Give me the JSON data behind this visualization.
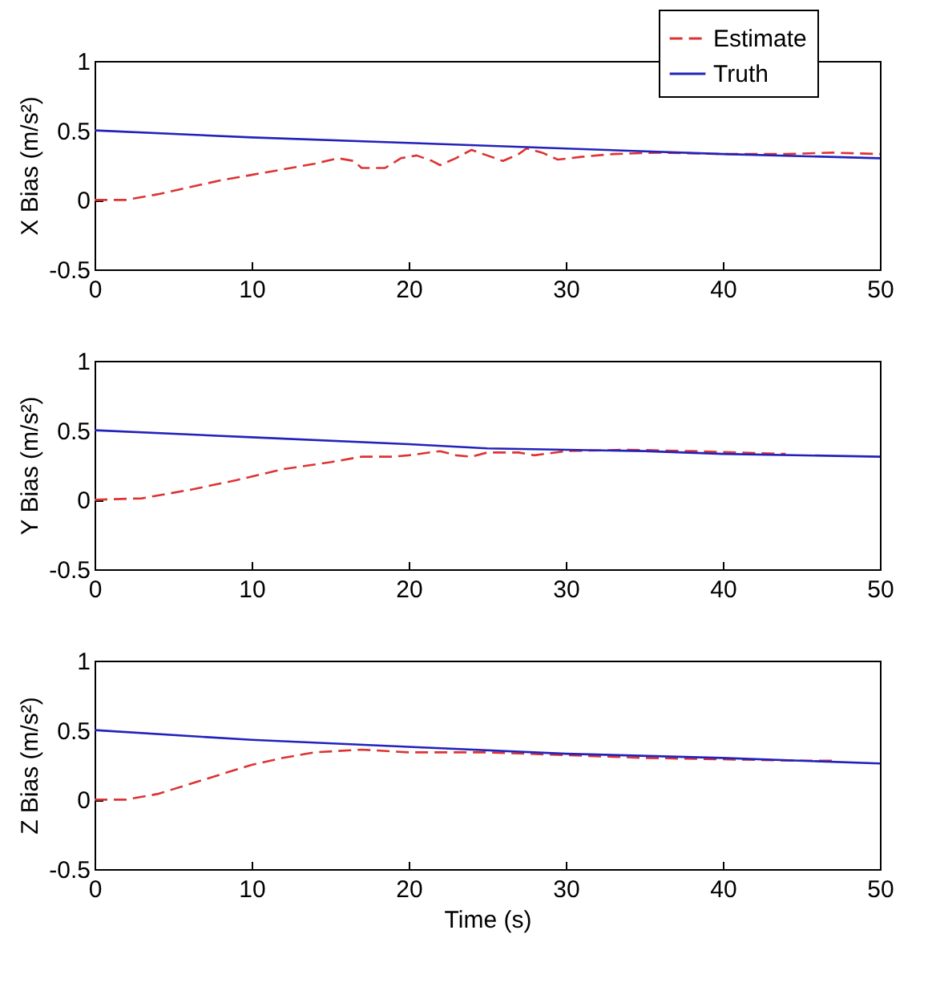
{
  "chart_data": [
    {
      "type": "line",
      "ylabel": "X Bias (m/s²)",
      "xlim": [
        0,
        50
      ],
      "ylim": [
        -0.5,
        1
      ],
      "xticks": [
        0,
        10,
        20,
        30,
        40,
        50
      ],
      "yticks": [
        -0.5,
        0,
        0.5,
        1
      ],
      "grid": false,
      "legend": "top right",
      "series": [
        {
          "name": "Estimate",
          "color": "#dd3333",
          "line_style": "dashed",
          "x": [
            0,
            2,
            4,
            6,
            8,
            10,
            12,
            14,
            15.5,
            16.5,
            17,
            18.5,
            19.5,
            20.5,
            21.5,
            22,
            23,
            24,
            25,
            26,
            27,
            27.5,
            28.5,
            29.5,
            31,
            33,
            36,
            40,
            44,
            47,
            50
          ],
          "values": [
            0,
            0,
            0.04,
            0.09,
            0.14,
            0.18,
            0.22,
            0.26,
            0.3,
            0.28,
            0.23,
            0.23,
            0.3,
            0.32,
            0.28,
            0.25,
            0.3,
            0.36,
            0.32,
            0.28,
            0.33,
            0.37,
            0.34,
            0.29,
            0.31,
            0.33,
            0.34,
            0.33,
            0.33,
            0.34,
            0.33
          ]
        },
        {
          "name": "Truth",
          "color": "#2222bb",
          "line_style": "solid",
          "x": [
            0,
            10,
            20,
            30,
            40,
            50
          ],
          "values": [
            0.5,
            0.45,
            0.41,
            0.37,
            0.33,
            0.3
          ]
        }
      ]
    },
    {
      "type": "line",
      "ylabel": "Y Bias (m/s²)",
      "xlim": [
        0,
        50
      ],
      "ylim": [
        -0.5,
        1
      ],
      "xticks": [
        0,
        10,
        20,
        30,
        40,
        50
      ],
      "yticks": [
        -0.5,
        0,
        0.5,
        1
      ],
      "grid": false,
      "series": [
        {
          "color": "#dd3333",
          "line_style": "dashed",
          "x": [
            0,
            3,
            6,
            9,
            12,
            15,
            17,
            19,
            20,
            22,
            23,
            24,
            25,
            27,
            28,
            30,
            34,
            38,
            44
          ],
          "values": [
            0,
            0.01,
            0.07,
            0.14,
            0.22,
            0.27,
            0.31,
            0.31,
            0.32,
            0.35,
            0.32,
            0.31,
            0.34,
            0.34,
            0.32,
            0.35,
            0.36,
            0.35,
            0.33
          ]
        },
        {
          "color": "#2222bb",
          "line_style": "solid",
          "x": [
            0,
            10,
            20,
            25,
            30,
            35,
            40,
            50
          ],
          "values": [
            0.5,
            0.45,
            0.4,
            0.37,
            0.36,
            0.35,
            0.33,
            0.31
          ]
        }
      ]
    },
    {
      "type": "line",
      "ylabel": "Z Bias (m/s²)",
      "xlabel": "Time (s)",
      "xlim": [
        0,
        50
      ],
      "ylim": [
        -0.5,
        1
      ],
      "xticks": [
        0,
        10,
        20,
        30,
        40,
        50
      ],
      "yticks": [
        -0.5,
        0,
        0.5,
        1
      ],
      "grid": false,
      "series": [
        {
          "color": "#dd3333",
          "line_style": "dashed",
          "x": [
            0,
            2,
            4,
            6,
            8,
            10,
            12,
            14,
            17,
            20,
            25,
            30,
            35,
            40,
            45,
            47
          ],
          "values": [
            0,
            0,
            0.04,
            0.11,
            0.18,
            0.25,
            0.3,
            0.34,
            0.36,
            0.34,
            0.34,
            0.32,
            0.3,
            0.29,
            0.28,
            0.28
          ]
        },
        {
          "color": "#2222bb",
          "line_style": "solid",
          "x": [
            0,
            10,
            20,
            30,
            40,
            50
          ],
          "values": [
            0.5,
            0.43,
            0.38,
            0.33,
            0.3,
            0.26
          ]
        }
      ]
    }
  ]
}
